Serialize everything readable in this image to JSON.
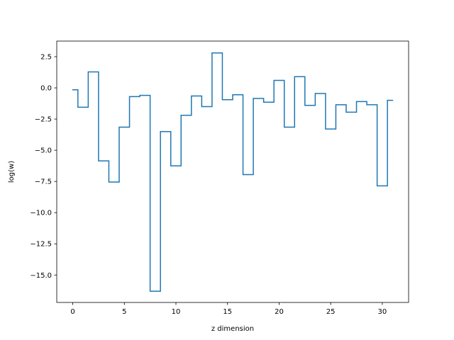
{
  "chart_data": {
    "type": "line",
    "drawstyle": "steps-mid",
    "title": "",
    "xlabel": "z dimension",
    "ylabel": "log(w)",
    "xlim": [
      -1.55,
      32.55
    ],
    "ylim": [
      -17.2,
      3.75
    ],
    "xticks": [
      0,
      5,
      10,
      15,
      20,
      25,
      30
    ],
    "yticks": [
      2.5,
      0.0,
      -2.5,
      -5.0,
      -7.5,
      -10.0,
      -12.5,
      -15.0
    ],
    "ytick_labels": [
      "2.5",
      "0.0",
      "−2.5",
      "−5.0",
      "−7.5",
      "−10.0",
      "−12.5",
      "−15.0"
    ],
    "grid": false,
    "color": "#1f77b4",
    "series": [
      {
        "x": [
          0,
          1,
          2,
          3,
          4,
          5,
          6,
          7,
          8,
          9,
          10,
          11,
          12,
          13,
          14,
          15,
          16,
          17,
          18,
          19,
          20,
          21,
          22,
          23,
          24,
          25,
          26,
          27,
          28,
          29,
          30,
          31
        ],
        "values": [
          -0.15,
          -1.55,
          1.28,
          -5.85,
          -7.55,
          -3.15,
          -0.7,
          -0.6,
          -16.3,
          -3.5,
          -6.25,
          -2.2,
          -0.65,
          -1.5,
          2.8,
          -0.95,
          -0.55,
          -6.95,
          -0.85,
          -1.15,
          0.6,
          -3.15,
          0.9,
          -1.4,
          -0.45,
          -3.3,
          -1.35,
          -1.95,
          -1.1,
          -1.35,
          -7.85,
          -1.0
        ]
      }
    ]
  }
}
